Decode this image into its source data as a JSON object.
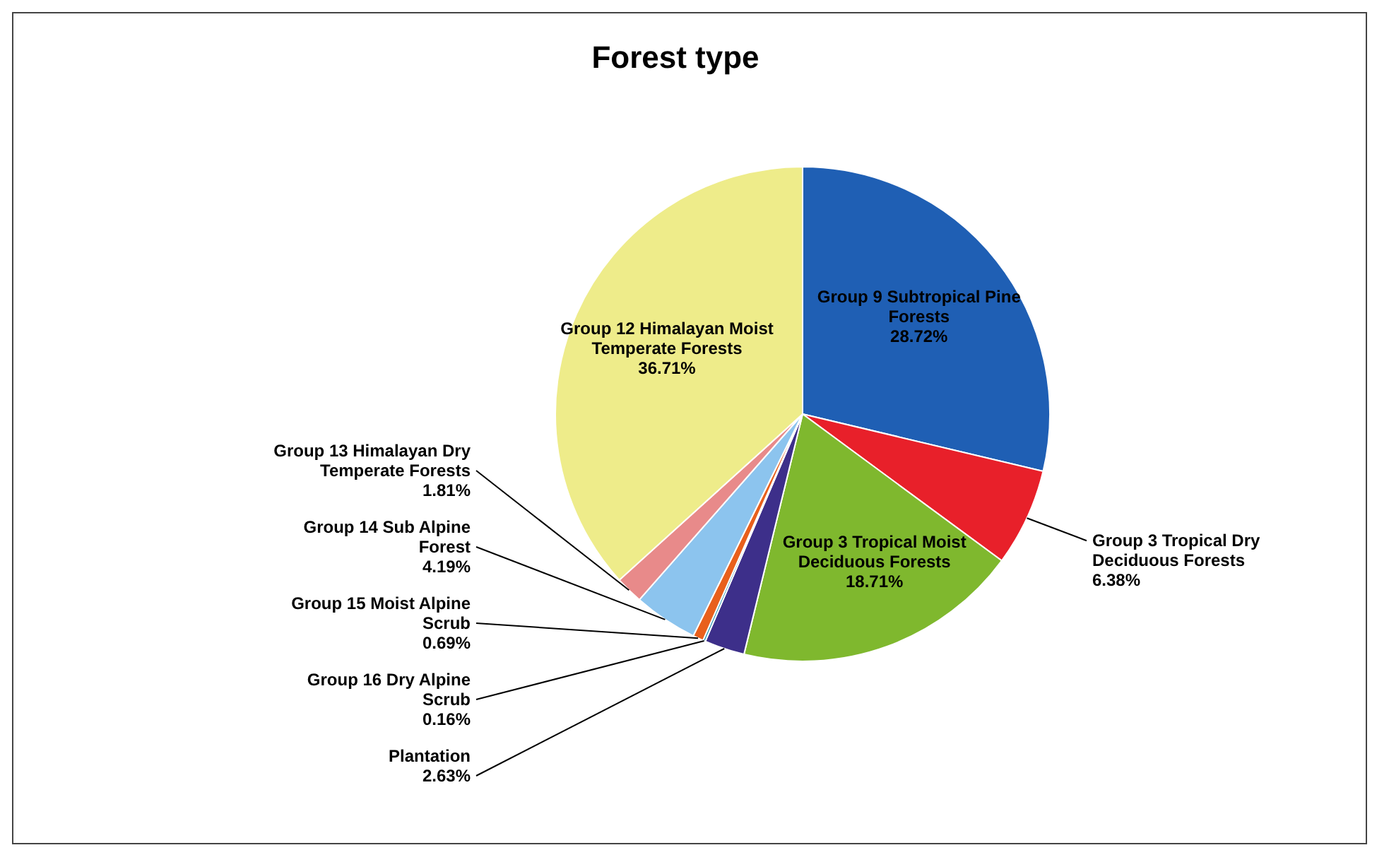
{
  "chart_data": {
    "type": "pie",
    "title": "Forest type",
    "categories": [
      "Group 9 Subtropical Pine Forests",
      "Group 3 Tropical Dry Deciduous Forests",
      "Group 3 Tropical Moist Deciduous Forests",
      "Plantation",
      "Group 16 Dry Alpine Scrub",
      "Group 15 Moist Alpine Scrub",
      "Group 14 Sub Alpine Forest",
      "Group 13 Himalayan Dry Temperate Forests",
      "Group 12 Himalayan Moist Temperate Forests"
    ],
    "values": [
      28.72,
      6.38,
      18.71,
      2.63,
      0.16,
      0.69,
      4.19,
      1.81,
      36.71
    ],
    "colors": [
      "#1f5fb4",
      "#e8202a",
      "#7fb82e",
      "#3d2f8a",
      "#1a8fb0",
      "#e8601c",
      "#8cc4ee",
      "#e88a8a",
      "#eeec8a"
    ],
    "value_labels": [
      "28.72%",
      "6.38%",
      "18.71%",
      "2.63%",
      "0.16%",
      "0.69%",
      "4.19%",
      "1.81%",
      "36.71%"
    ]
  }
}
